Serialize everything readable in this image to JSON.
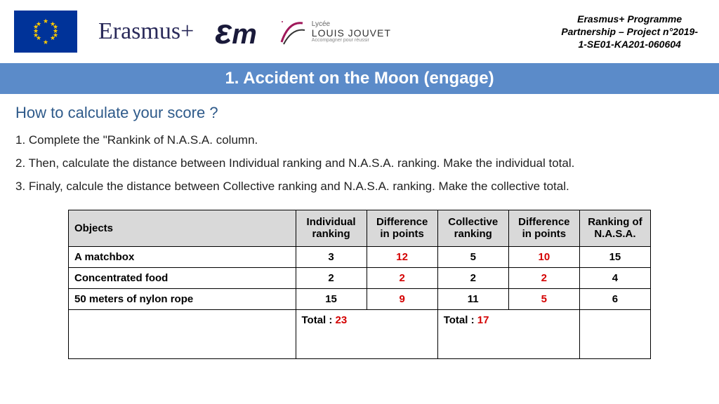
{
  "header": {
    "erasmus_label": "Erasmus+",
    "em_label": "Em",
    "jouvet_lycee": "Lycée",
    "jouvet_name": "LOUIS JOUVET",
    "jouvet_tagline": "Accompagner pour réussir",
    "project_line1": "Erasmus+ Programme",
    "project_line2": "Partnership – Project n°2019-",
    "project_line3": "1-SE01-KA201-060604"
  },
  "title": "1. Accident on the Moon (engage)",
  "subtitle": "How to calculate your score ?",
  "steps": [
    "1. Complete the \"Rankink of N.A.S.A. column.",
    "2. Then, calculate the distance between Individual ranking and N.A.S.A. ranking. Make the individual total.",
    "3. Finaly, calcule the distance between Collective ranking and N.A.S.A. ranking. Make the collective total."
  ],
  "table": {
    "columns": [
      "Objects",
      "Individual ranking",
      "Difference in points",
      "Collective ranking",
      "Difference in points",
      "Ranking of N.A.S.A."
    ],
    "rows": [
      {
        "object": "A matchbox",
        "ind": "3",
        "diff1": "12",
        "coll": "5",
        "diff2": "10",
        "nasa": "15"
      },
      {
        "object": "Concentrated food",
        "ind": "2",
        "diff1": "2",
        "coll": "2",
        "diff2": "2",
        "nasa": "4"
      },
      {
        "object": "50 meters of nylon rope",
        "ind": "15",
        "diff1": "9",
        "coll": "11",
        "diff2": "5",
        "nasa": "6"
      }
    ],
    "total_label": "Total : ",
    "total_ind": "23",
    "total_coll": "17"
  },
  "colors": {
    "title_bg": "#5b8bc9",
    "subtitle": "#2e5a8a",
    "header_bg": "#d9d9d9",
    "diff_red": "#d40000",
    "eu_blue": "#003399",
    "eu_gold": "#ffcc00"
  }
}
